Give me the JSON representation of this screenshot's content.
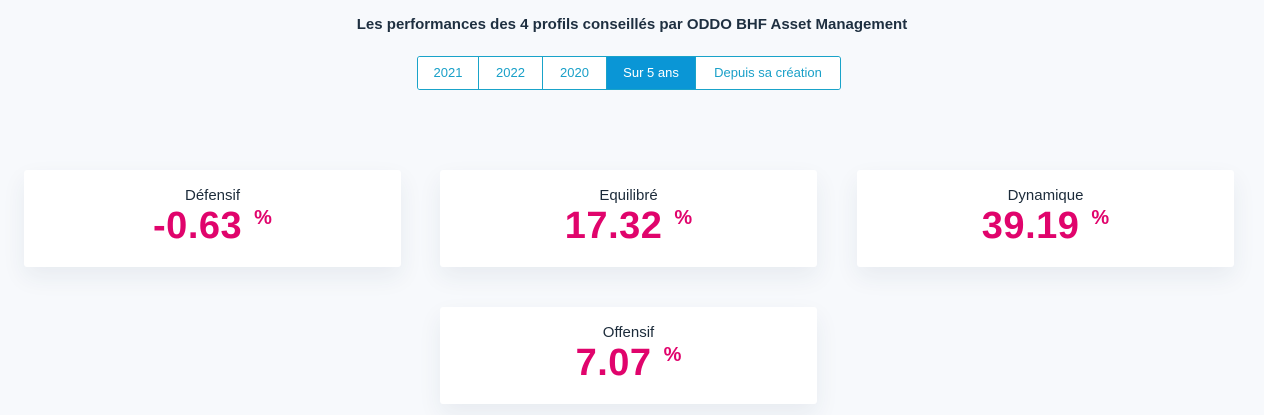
{
  "header": {
    "title": "Les performances des 4 profils conseillés par ODDO BHF Asset Management"
  },
  "tabs": [
    {
      "label": "2021",
      "active": false
    },
    {
      "label": "2022",
      "active": false
    },
    {
      "label": "2020",
      "active": false
    },
    {
      "label": "Sur 5 ans",
      "active": true
    },
    {
      "label": "Depuis sa création",
      "active": false
    }
  ],
  "profiles": [
    {
      "label": "Défensif",
      "value": "-0.63",
      "unit": "%"
    },
    {
      "label": "Equilibré",
      "value": "17.32",
      "unit": "%"
    },
    {
      "label": "Dynamique",
      "value": "39.19",
      "unit": "%"
    },
    {
      "label": "Offensif",
      "value": "7.07",
      "unit": "%"
    }
  ],
  "colors": {
    "accent": "#0a96d6",
    "tab_border": "#19a3c9",
    "value": "#e0046c",
    "background": "#f7f9fc"
  }
}
